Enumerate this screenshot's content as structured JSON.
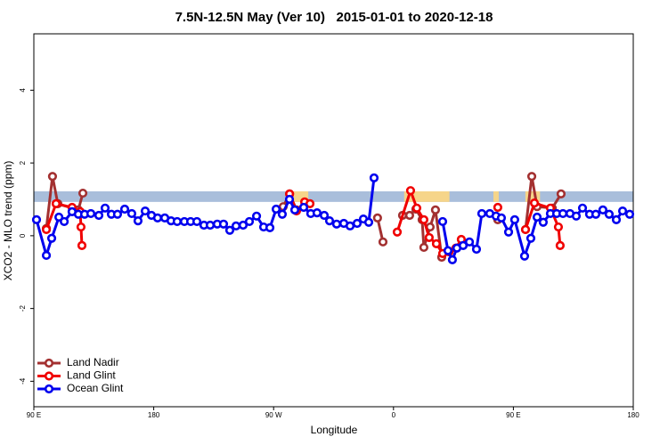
{
  "chart_data": {
    "type": "line",
    "title": "7.5N-12.5N May (Ver 10)   2015-01-01 to 2020-12-18",
    "x_label": "Longitude",
    "y_label": "XCO2 - MLO trend (ppm)",
    "xlim": [
      90,
      540
    ],
    "ylim": [
      -4.7,
      5.55
    ],
    "xticks": [
      {
        "value": 90,
        "label": "90 E"
      },
      180,
      {
        "value": 270,
        "label": "90 W"
      },
      {
        "value": 360,
        "label": "0"
      },
      {
        "value": 450,
        "label": "90 E"
      },
      {
        "value": 540,
        "label": "180"
      }
    ],
    "yticks": [
      -4,
      -2,
      0,
      2,
      4
    ],
    "band": {
      "ylim": [
        0.93,
        1.22
      ],
      "color": "#a9bedb"
    },
    "band_highlights": {
      "color": "#f6d58a",
      "xranges": [
        [
          282,
          296
        ],
        [
          368,
          402
        ],
        [
          435,
          439
        ],
        [
          459,
          470
        ]
      ]
    },
    "legend": "bottom-left",
    "series": [
      {
        "name": "Land Nadir",
        "color": "#a33030",
        "x": [
          99.4,
          104,
          108,
          123.4,
          126.8,
          null,
          277.2,
          282,
          287.2,
          null,
          348,
          352.1,
          null,
          366.8,
          372.1,
          376.8,
          381.5,
          382.8,
          387.5,
          391.5,
          396.2,
          null,
          438.3,
          null,
          459.1,
          463.8,
          467.8,
          479.2,
          485.8
        ],
        "values": [
          0.2,
          1.63,
          0.88,
          0.71,
          1.17,
          null,
          0.8,
          1.15,
          0.71,
          null,
          0.49,
          -0.17,
          null,
          0.56,
          0.56,
          0.73,
          0.44,
          -0.32,
          0.24,
          0.71,
          -0.59,
          null,
          0.44,
          null,
          0.17,
          1.63,
          0.8,
          0.76,
          1.15
        ]
      },
      {
        "name": "Land Glint",
        "color": "#f00000",
        "x": [
          99.4,
          106.7,
          118.7,
          124.8,
          125.4,
          126.1,
          null,
          282,
          287.2,
          293.3,
          297.3,
          null,
          362.8,
          372.8,
          377.5,
          382.8,
          386.8,
          392.2,
          396.9,
          401.6,
          406.9,
          410.9,
          null,
          438.3,
          null,
          459.1,
          465.8,
          477.8,
          483.8,
          485.1
        ],
        "values": [
          0.17,
          0.88,
          0.78,
          0.66,
          0.24,
          -0.27,
          null,
          1.15,
          0.68,
          0.93,
          0.88,
          null,
          0.1,
          1.24,
          0.76,
          0.44,
          -0.05,
          -0.22,
          -0.49,
          -0.44,
          -0.34,
          -0.1,
          null,
          0.78,
          null,
          0.17,
          0.9,
          0.76,
          0.24,
          -0.27
        ]
      },
      {
        "name": "Ocean Glint",
        "color": "#0000ee",
        "x": [
          92,
          99.4,
          103.4,
          108.8,
          112.8,
          118.7,
          123.4,
          128.1,
          132.8,
          138.8,
          143.5,
          148.2,
          152.8,
          158.2,
          163.5,
          168.2,
          173.6,
          178.3,
          182.9,
          188.3,
          193,
          197.6,
          203,
          207.7,
          212.4,
          217.7,
          222.4,
          227.7,
          232.4,
          237.1,
          241.8,
          247.1,
          251.8,
          257.2,
          262.5,
          267.2,
          271.9,
          276.5,
          281.9,
          285.9,
          292.6,
          297.9,
          302.6,
          308,
          312,
          317.3,
          322.7,
          327.4,
          332.7,
          337.4,
          341.4,
          345.4,
          null,
          396.9,
          400.9,
          404.2,
          407.6,
          412.3,
          417,
          422.3,
          426.3,
          432.3,
          437,
          441,
          446.4,
          451,
          458.4,
          463.1,
          467.8,
          472.4,
          477.8,
          482.5,
          487.2,
          492.5,
          497.2,
          501.9,
          507.2,
          511.9,
          517.2,
          521.9,
          527.3,
          532,
          537.3
        ],
        "values": [
          0.44,
          -0.54,
          -0.07,
          0.51,
          0.39,
          0.66,
          0.59,
          0.59,
          0.61,
          0.56,
          0.76,
          0.59,
          0.59,
          0.73,
          0.61,
          0.41,
          0.68,
          0.56,
          0.49,
          0.49,
          0.41,
          0.39,
          0.39,
          0.39,
          0.39,
          0.29,
          0.29,
          0.32,
          0.32,
          0.15,
          0.27,
          0.29,
          0.39,
          0.54,
          0.24,
          0.22,
          0.73,
          0.59,
          1.0,
          0.71,
          0.78,
          0.61,
          0.63,
          0.56,
          0.41,
          0.32,
          0.34,
          0.27,
          0.34,
          0.46,
          0.37,
          1.59,
          null,
          0.39,
          -0.41,
          -0.66,
          -0.34,
          -0.27,
          -0.17,
          -0.37,
          0.61,
          0.61,
          0.54,
          0.49,
          0.1,
          0.44,
          -0.56,
          -0.07,
          0.51,
          0.37,
          0.61,
          0.61,
          0.61,
          0.61,
          0.54,
          0.76,
          0.59,
          0.59,
          0.71,
          0.59,
          0.44,
          0.68,
          0.59
        ]
      }
    ]
  }
}
